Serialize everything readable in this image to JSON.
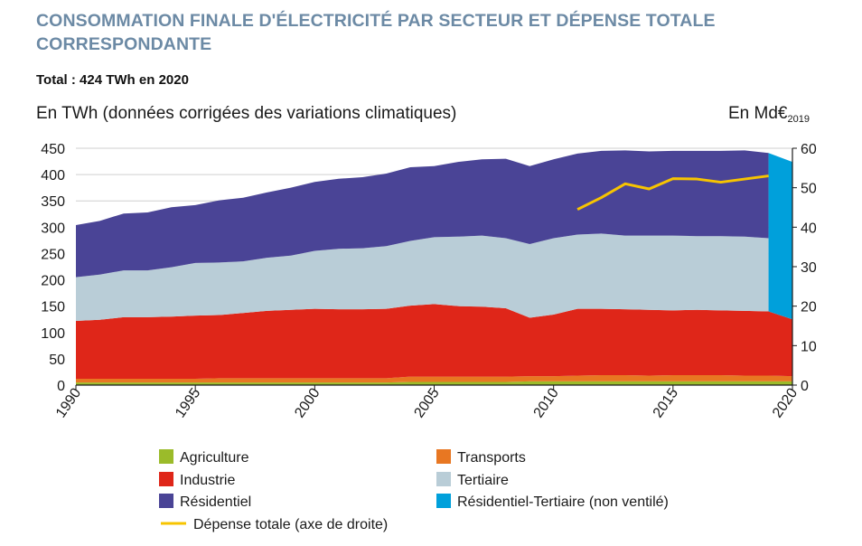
{
  "title": "CONSOMMATION FINALE D'ÉLECTRICITÉ PAR SECTEUR ET DÉPENSE TOTALE CORRESPONDANTE",
  "subtitle": "Total : 424 TWh en 2020",
  "chart_data": {
    "type": "area",
    "title": "CONSOMMATION FINALE D'ÉLECTRICITÉ PAR SECTEUR ET DÉPENSE TOTALE CORRESPONDANTE",
    "subtitle": "Total : 424 TWh en 2020",
    "ylabel": "En TWh (données corrigées des variations climatiques)",
    "y2label": "En Md€",
    "y2label_sub": "2019",
    "ylim": [
      0,
      450
    ],
    "y_ticks": [
      0,
      50,
      100,
      150,
      200,
      250,
      300,
      350,
      400,
      450
    ],
    "y2lim": [
      0,
      60
    ],
    "y2_ticks": [
      0,
      10,
      20,
      30,
      40,
      50,
      60
    ],
    "xlim": [
      1990,
      2020
    ],
    "x_ticks": [
      1990,
      1995,
      2000,
      2005,
      2010,
      2015,
      2020
    ],
    "grid": true,
    "stacked": true,
    "x": [
      1990,
      1991,
      1992,
      1993,
      1994,
      1995,
      1996,
      1997,
      1998,
      1999,
      2000,
      2001,
      2002,
      2003,
      2004,
      2005,
      2006,
      2007,
      2008,
      2009,
      2010,
      2011,
      2012,
      2013,
      2014,
      2015,
      2016,
      2017,
      2018,
      2019,
      2020
    ],
    "series": [
      {
        "name": "Agriculture",
        "color": "#9bbb2a",
        "values": [
          5,
          5,
          5,
          5,
          5,
          5,
          5,
          5,
          5,
          5,
          5,
          5,
          5,
          5,
          6,
          6,
          6,
          6,
          6,
          7,
          7,
          7,
          7,
          7,
          7,
          7,
          7,
          7,
          7,
          7,
          7
        ]
      },
      {
        "name": "Transports",
        "color": "#e87722",
        "values": [
          7,
          7,
          7,
          7,
          7,
          7,
          8,
          8,
          8,
          8,
          8,
          8,
          8,
          8,
          10,
          10,
          10,
          10,
          10,
          10,
          10,
          11,
          12,
          12,
          11,
          12,
          12,
          12,
          11,
          11,
          10
        ]
      },
      {
        "name": "Industrie",
        "color": "#df2619",
        "values": [
          110,
          112,
          117,
          117,
          118,
          120,
          120,
          124,
          128,
          130,
          132,
          131,
          131,
          132,
          135,
          138,
          134,
          133,
          130,
          111,
          117,
          127,
          126,
          125,
          125,
          123,
          124,
          123,
          123,
          122,
          108
        ]
      },
      {
        "name": "Tertiaire",
        "color": "#b9cdd7",
        "values": [
          83,
          86,
          89,
          89,
          94,
          100,
          100,
          98,
          101,
          103,
          110,
          115,
          116,
          119,
          123,
          127,
          132,
          135,
          133,
          140,
          145,
          141,
          143,
          140,
          141,
          142,
          140,
          141,
          141,
          139,
          null
        ]
      },
      {
        "name": "Résidentiel",
        "color": "#4a4496",
        "values": [
          99,
          102,
          108,
          110,
          114,
          110,
          118,
          121,
          124,
          129,
          131,
          133,
          135,
          138,
          140,
          135,
          142,
          145,
          151,
          148,
          150,
          154,
          157,
          162,
          160,
          161,
          162,
          162,
          164,
          162,
          null
        ]
      },
      {
        "name": "Résidentiel-Tertiaire (non ventilé)",
        "color": "#00a0db",
        "values": [
          null,
          null,
          null,
          null,
          null,
          null,
          null,
          null,
          null,
          null,
          null,
          null,
          null,
          null,
          null,
          null,
          null,
          null,
          null,
          null,
          null,
          null,
          null,
          null,
          null,
          null,
          null,
          null,
          null,
          null,
          299
        ]
      }
    ],
    "line_series": {
      "name": "Dépense totale (axe de droite)",
      "color": "#f7c400",
      "axis": "right",
      "x": [
        2011,
        2012,
        2013,
        2014,
        2015,
        2016,
        2017,
        2018,
        2019
      ],
      "values": [
        44.5,
        47.5,
        51.0,
        49.7,
        52.3,
        52.2,
        51.4,
        52.2,
        53.0
      ]
    }
  },
  "legend": [
    {
      "label": "Agriculture",
      "color": "#9bbb2a",
      "kind": "box"
    },
    {
      "label": "Transports",
      "color": "#e87722",
      "kind": "box"
    },
    {
      "label": "Industrie",
      "color": "#df2619",
      "kind": "box"
    },
    {
      "label": "Tertiaire",
      "color": "#b9cdd7",
      "kind": "box"
    },
    {
      "label": "Résidentiel",
      "color": "#4a4496",
      "kind": "box"
    },
    {
      "label": "Résidentiel-Tertiaire (non ventilé)",
      "color": "#00a0db",
      "kind": "box"
    },
    {
      "label": "Dépense totale (axe de droite)",
      "color": "#f7c400",
      "kind": "line"
    }
  ]
}
